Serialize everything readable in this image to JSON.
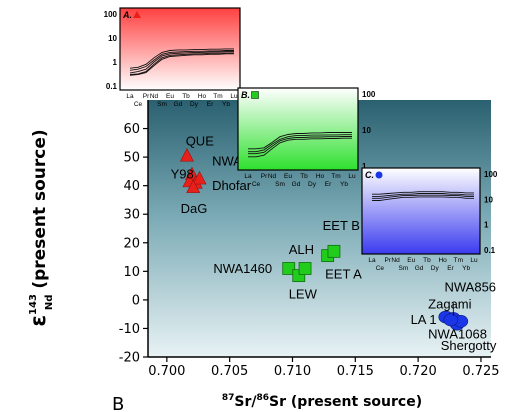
{
  "panel_label": "B",
  "chart_data": {
    "type": "scatter",
    "xlabel_super1": "87",
    "xlabel_base1": "Sr/",
    "xlabel_super2": "86",
    "xlabel_base2": "Sr (present source)",
    "ylabel_prefix": "ε",
    "ylabel_super": "143",
    "ylabel_sub": "Nd",
    "ylabel_suffix": " (present source)",
    "xlim": [
      0.6985,
      0.7258
    ],
    "ylim": [
      -20,
      70
    ],
    "x_ticks": [
      "0.700",
      "0.705",
      "0.710",
      "0.715",
      "0.720",
      "0.725"
    ],
    "x_tick_values": [
      0.7,
      0.705,
      0.71,
      0.715,
      0.72,
      0.725
    ],
    "y_ticks": [
      "-20",
      "-10",
      "0",
      "10",
      "20",
      "30",
      "40",
      "50",
      "60"
    ],
    "y_tick_values": [
      -20,
      -10,
      0,
      10,
      20,
      30,
      40,
      50,
      60
    ],
    "series": [
      {
        "group": "A",
        "marker": "triangle",
        "color": "#e8201a",
        "points": [
          {
            "x": 0.7016,
            "y": 50.5
          },
          {
            "x": 0.702,
            "y": 44.0
          },
          {
            "x": 0.7018,
            "y": 41.5
          },
          {
            "x": 0.7023,
            "y": 41.0
          },
          {
            "x": 0.7026,
            "y": 42.5
          },
          {
            "x": 0.7021,
            "y": 39.5
          }
        ],
        "labels": [
          {
            "text": "QUE",
            "x": 0.7015,
            "y": 54.0
          },
          {
            "text": "NWA",
            "x": 0.7036,
            "y": 47.0
          },
          {
            "text": "Y98",
            "x": 0.7003,
            "y": 42.5
          },
          {
            "text": "Dhofar",
            "x": 0.7036,
            "y": 38.5
          },
          {
            "text": "DaG",
            "x": 0.7011,
            "y": 30.5
          }
        ]
      },
      {
        "group": "B",
        "marker": "square",
        "color": "#22cc1c",
        "points": [
          {
            "x": 0.7097,
            "y": 11.0
          },
          {
            "x": 0.7105,
            "y": 8.5
          },
          {
            "x": 0.711,
            "y": 11.0
          },
          {
            "x": 0.7128,
            "y": 15.5
          },
          {
            "x": 0.7133,
            "y": 17.0
          }
        ],
        "labels": [
          {
            "text": "EET B",
            "x": 0.7124,
            "y": 24.5
          },
          {
            "text": "ALH",
            "x": 0.7097,
            "y": 16.0
          },
          {
            "text": "NWA1460",
            "x": 0.7037,
            "y": 9.5
          },
          {
            "text": "EET A",
            "x": 0.7126,
            "y": 7.5
          },
          {
            "text": "LEW",
            "x": 0.7097,
            "y": 0.5
          }
        ]
      },
      {
        "group": "C",
        "marker": "circle",
        "color": "#1a36e6",
        "points": [
          {
            "x": 0.7222,
            "y": -6.0
          },
          {
            "x": 0.7228,
            "y": -6.5
          },
          {
            "x": 0.7231,
            "y": -8.5
          },
          {
            "x": 0.7234,
            "y": -7.5
          },
          {
            "x": 0.7226,
            "y": -7.0
          }
        ],
        "labels": [
          {
            "text": "NWA856",
            "x": 0.7221,
            "y": 3.0
          },
          {
            "text": "Zagami",
            "x": 0.7208,
            "y": -3.0
          },
          {
            "text": "LA 1",
            "x": 0.7194,
            "y": -8.5
          },
          {
            "text": "NWA1068",
            "x": 0.7208,
            "y": -13.5
          },
          {
            "text": "Shergotty",
            "x": 0.7218,
            "y": -17.5
          }
        ]
      }
    ]
  },
  "insets": [
    {
      "id": "A",
      "title": "A.",
      "marker": "triangle",
      "marker_color": "#e8201a",
      "bg_top": "#ff4040",
      "bg_bottom": "#ffffff",
      "y_ticks": [
        "100",
        "10",
        "1",
        "0.1"
      ],
      "y_tick_values": [
        100,
        10,
        1,
        0.1
      ],
      "elements_top": [
        "La",
        "Pr",
        "Nd",
        "Eu",
        "Tb",
        "Ho",
        "Tm",
        "Lu"
      ],
      "elements_bottom": [
        "Ce",
        "Sm",
        "Gd",
        "Dy",
        "Er",
        "Yb"
      ],
      "curves": [
        [
          0.55,
          0.6,
          0.8,
          1.5,
          2.5,
          3.0,
          3.2,
          3.2,
          3.3,
          3.3,
          3.4,
          3.4,
          3.5,
          3.5
        ],
        [
          0.45,
          0.5,
          0.65,
          1.2,
          2.1,
          2.5,
          2.6,
          2.7,
          2.8,
          2.8,
          2.9,
          2.9,
          3.0,
          3.0
        ],
        [
          0.35,
          0.4,
          0.5,
          1.0,
          1.8,
          2.2,
          2.3,
          2.4,
          2.5,
          2.5,
          2.6,
          2.6,
          2.7,
          2.7
        ],
        [
          0.3,
          0.32,
          0.4,
          0.8,
          1.5,
          1.9,
          2.0,
          2.1,
          2.2,
          2.2,
          2.3,
          2.3,
          2.4,
          2.4
        ],
        [
          0.28,
          0.3,
          0.36,
          0.7,
          1.3,
          1.7,
          1.8,
          1.9,
          2.0,
          2.0,
          2.1,
          2.1,
          2.2,
          2.2
        ]
      ]
    },
    {
      "id": "B",
      "title": "B.",
      "marker": "square",
      "marker_color": "#22cc1c",
      "bg_top": "#ffffff",
      "bg_bottom": "#2ee02e",
      "y_ticks": [
        "100",
        "10",
        "1"
      ],
      "y_tick_values": [
        100,
        10,
        1
      ],
      "elements_top": [
        "La",
        "Pr",
        "Nd",
        "Eu",
        "Tb",
        "Ho",
        "Tm",
        "Lu"
      ],
      "elements_bottom": [
        "Ce",
        "Sm",
        "Gd",
        "Dy",
        "Er",
        "Yb"
      ],
      "curves": [
        [
          3.0,
          3.0,
          3.2,
          4.5,
          6.5,
          7.5,
          8.0,
          8.0,
          8.3,
          8.3,
          8.5,
          8.5,
          8.5,
          8.5
        ],
        [
          2.5,
          2.5,
          2.8,
          4.0,
          5.5,
          6.5,
          7.0,
          7.0,
          7.2,
          7.2,
          7.3,
          7.3,
          7.4,
          7.4
        ],
        [
          2.2,
          2.2,
          2.4,
          3.5,
          5.0,
          5.8,
          6.2,
          6.2,
          6.4,
          6.4,
          6.5,
          6.5,
          6.6,
          6.6
        ],
        [
          1.8,
          1.8,
          2.0,
          3.0,
          4.4,
          5.2,
          5.5,
          5.5,
          5.7,
          5.7,
          5.8,
          5.8,
          5.9,
          5.9
        ]
      ]
    },
    {
      "id": "C",
      "title": "C.",
      "marker": "circle",
      "marker_color": "#1a36e6",
      "bg_top": "#ffffff",
      "bg_bottom": "#3a3af0",
      "y_ticks": [
        "100",
        "10",
        "1",
        "0.1"
      ],
      "y_tick_values": [
        100,
        10,
        1,
        0.1
      ],
      "elements_top": [
        "La",
        "Pr",
        "Nd",
        "Eu",
        "Tb",
        "Ho",
        "Tm",
        "Lu"
      ],
      "elements_bottom": [
        "Ce",
        "Sm",
        "Gd",
        "Dy",
        "Er",
        "Yb"
      ],
      "curves": [
        [
          16,
          16,
          17,
          18,
          19,
          19,
          20,
          20,
          20,
          20,
          19,
          19,
          18,
          18
        ],
        [
          13,
          13,
          14,
          15,
          16,
          16,
          17,
          17,
          17,
          17,
          16,
          16,
          15,
          15
        ],
        [
          11,
          11,
          12,
          13,
          14,
          14,
          14.5,
          14.5,
          14.5,
          14.5,
          14,
          14,
          13,
          13
        ],
        [
          9,
          9,
          10,
          11,
          12,
          12,
          12.5,
          12.5,
          12.5,
          12.5,
          12,
          12,
          11,
          11
        ]
      ]
    }
  ]
}
